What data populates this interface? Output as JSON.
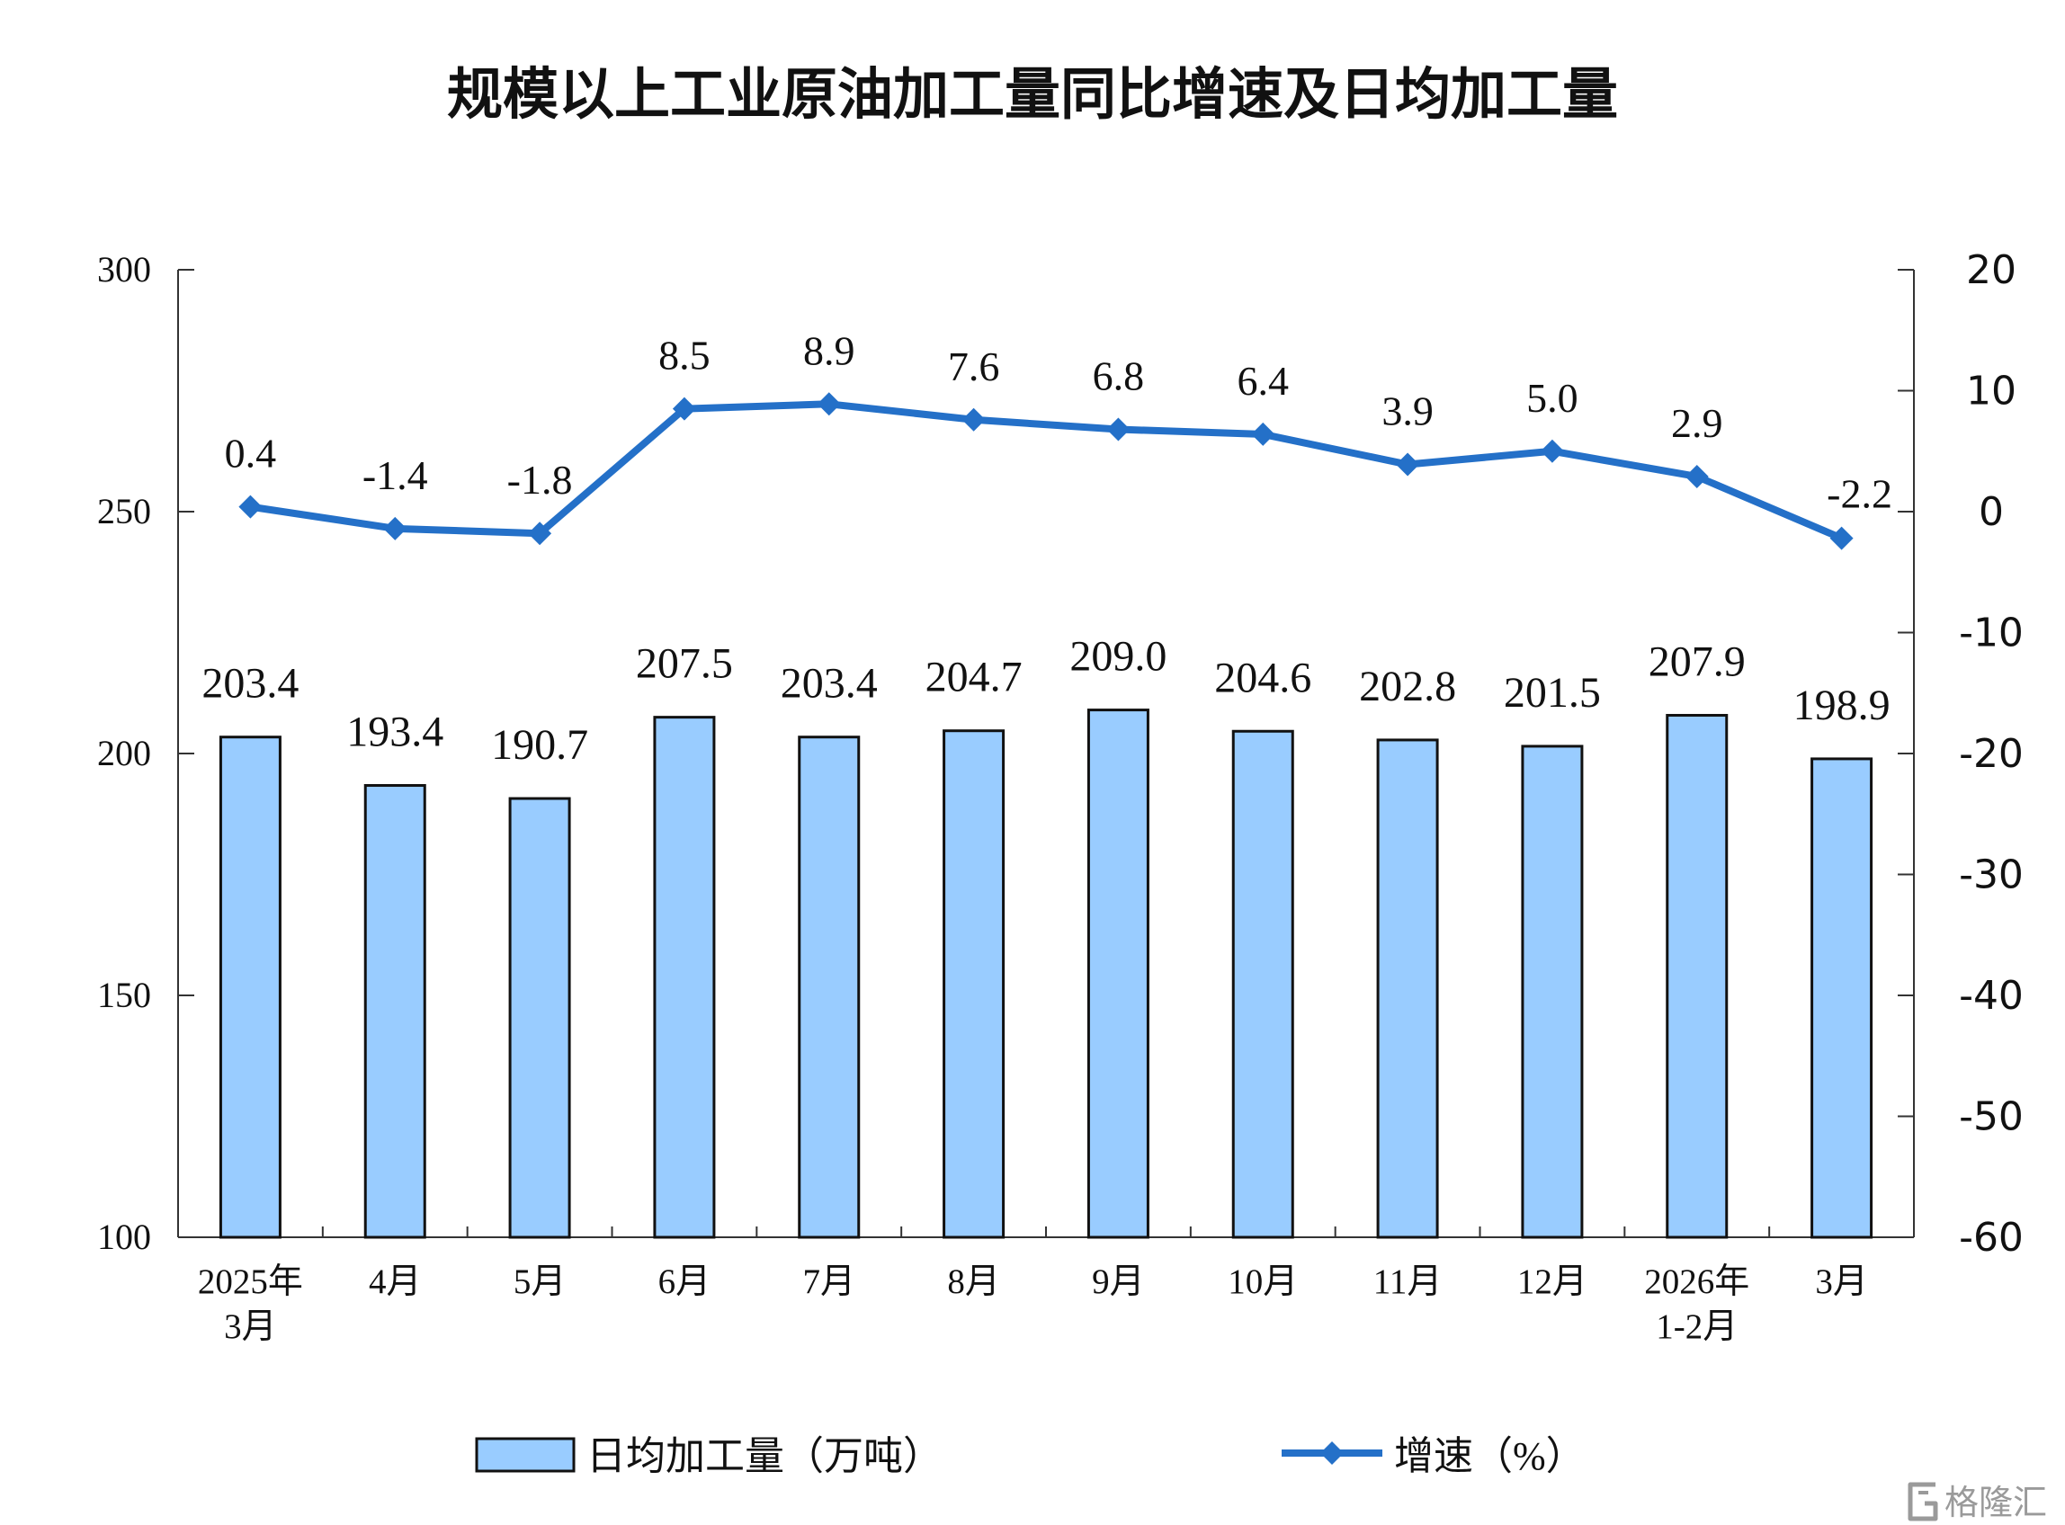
{
  "chart_data": {
    "type": "bar",
    "title": "规模以上工业原油加工量同比增速及日均加工量",
    "categories": [
      [
        "2025年",
        "3月"
      ],
      [
        "4月"
      ],
      [
        "5月"
      ],
      [
        "6月"
      ],
      [
        "7月"
      ],
      [
        "8月"
      ],
      [
        "9月"
      ],
      [
        "10月"
      ],
      [
        "11月"
      ],
      [
        "12月"
      ],
      [
        "2026年",
        "1-2月"
      ],
      [
        "3月"
      ]
    ],
    "series": [
      {
        "name": "日均加工量（万吨）",
        "type": "bar",
        "axis": "left",
        "color": "#99ccff",
        "values": [
          203.4,
          193.4,
          190.7,
          207.5,
          203.4,
          204.7,
          209.0,
          204.6,
          202.8,
          201.5,
          207.9,
          198.9
        ],
        "labels": [
          "203.4",
          "193.4",
          "190.7",
          "207.5",
          "203.4",
          "204.7",
          "209.0",
          "204.6",
          "202.8",
          "201.5",
          "207.9",
          "198.9"
        ]
      },
      {
        "name": "增速（%）",
        "type": "line",
        "axis": "right",
        "color": "#2470c8",
        "marker": "diamond",
        "values": [
          0.4,
          -1.4,
          -1.8,
          8.5,
          8.9,
          7.6,
          6.8,
          6.4,
          3.9,
          5.0,
          2.9,
          -2.2
        ],
        "labels": [
          "0.4",
          "-1.4",
          "-1.8",
          "8.5",
          "8.9",
          "7.6",
          "6.8",
          "6.4",
          "3.9",
          "5.0",
          "2.9",
          "-2.2"
        ]
      }
    ],
    "y_left": {
      "ylim": [
        100,
        300
      ],
      "ticks": [
        "100",
        "150",
        "200",
        "250",
        "300"
      ]
    },
    "y_right": {
      "ylim": [
        -60,
        20
      ],
      "ticks": [
        "-60",
        "-50",
        "-40",
        "-30",
        "-20",
        "-10",
        "0",
        "10",
        "20"
      ]
    },
    "grid": false,
    "legend_position": "bottom"
  },
  "watermark": {
    "text": "格隆汇",
    "logo": "gelonghui-logo"
  }
}
